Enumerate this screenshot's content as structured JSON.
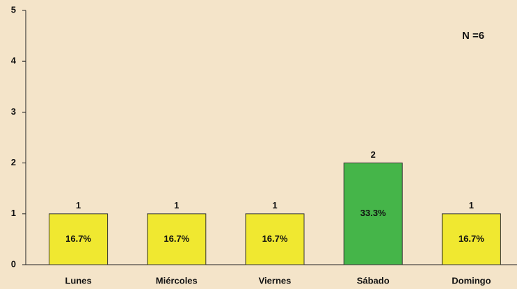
{
  "chart_data": {
    "type": "bar",
    "categories": [
      "Lunes",
      "Miércoles",
      "Viernes",
      "Sábado",
      "Domingo"
    ],
    "values": [
      1,
      1,
      1,
      2,
      1
    ],
    "percent_labels": [
      "16.7%",
      "16.7%",
      "16.7%",
      "33.3%",
      "16.7%"
    ],
    "colors": [
      "#f0e830",
      "#f0e830",
      "#f0e830",
      "#45b549",
      "#f0e830"
    ],
    "annotation": "N =6",
    "ylim": [
      0,
      5
    ],
    "yticks": [
      0,
      1,
      2,
      3,
      4,
      5
    ],
    "grid": false
  }
}
